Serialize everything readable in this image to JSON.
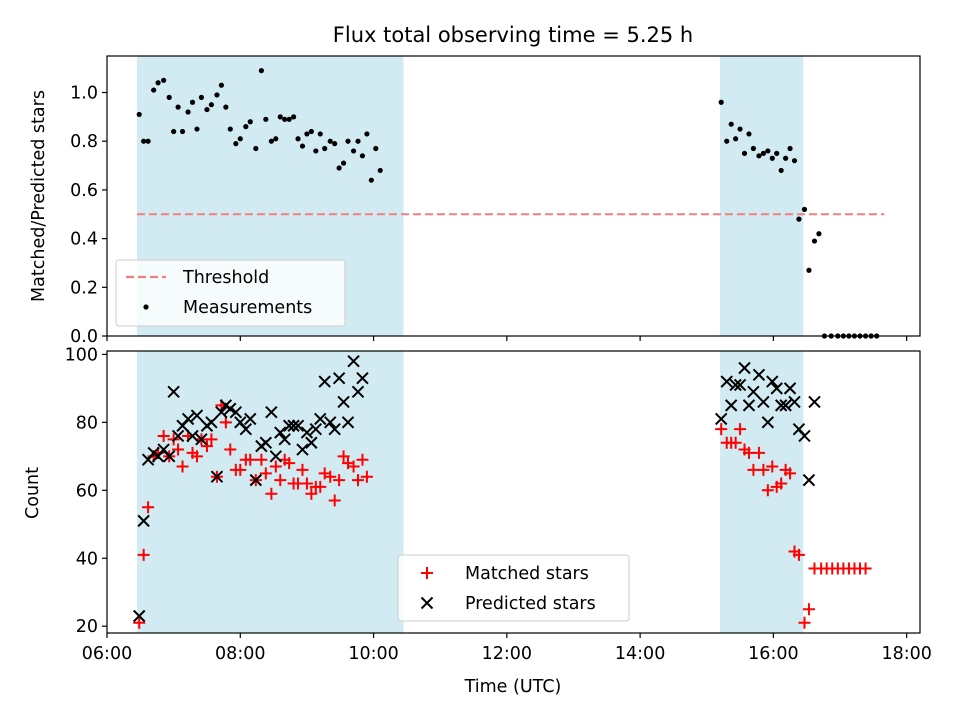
{
  "colors": {
    "shade": "#add8e6",
    "threshold": "#f08080",
    "matched": "#ff0000",
    "predicted": "#000000",
    "measurement": "#000000"
  },
  "chart_data": [
    {
      "type": "scatter",
      "title": "Flux total observing time = 5.25 h",
      "xlabel": "",
      "ylabel": "Matched/Predicted stars",
      "xlim": [
        "06:00",
        "18:12"
      ],
      "ylim": [
        0,
        1.15
      ],
      "yticks": [
        0.0,
        0.2,
        0.4,
        0.6,
        0.8,
        1.0
      ],
      "ytick_labels": [
        "0.0",
        "0.2",
        "0.4",
        "0.6",
        "0.8",
        "1.0"
      ],
      "xtick_labels_shown": false,
      "shaded_intervals": [
        [
          "06:27",
          "10:27"
        ],
        [
          "15:12",
          "16:27"
        ]
      ],
      "threshold": {
        "name": "Threshold",
        "value": 0.5,
        "x": [
          "06:27",
          "17:40"
        ]
      },
      "legend": {
        "placement": "lower-left",
        "entries": [
          "Threshold",
          "Measurements"
        ]
      },
      "series": [
        {
          "name": "Measurements",
          "points": [
            [
              "06:29",
              0.91
            ],
            [
              "06:33",
              0.8
            ],
            [
              "06:37",
              0.8
            ],
            [
              "06:42",
              1.01
            ],
            [
              "06:46",
              1.04
            ],
            [
              "06:51",
              1.05
            ],
            [
              "06:56",
              0.98
            ],
            [
              "07:00",
              0.84
            ],
            [
              "07:04",
              0.94
            ],
            [
              "07:08",
              0.84
            ],
            [
              "07:13",
              0.92
            ],
            [
              "07:17",
              0.96
            ],
            [
              "07:21",
              0.85
            ],
            [
              "07:25",
              0.98
            ],
            [
              "07:30",
              0.93
            ],
            [
              "07:34",
              0.95
            ],
            [
              "07:39",
              0.99
            ],
            [
              "07:43",
              1.03
            ],
            [
              "07:47",
              0.94
            ],
            [
              "07:51",
              0.85
            ],
            [
              "07:56",
              0.79
            ],
            [
              "08:00",
              0.81
            ],
            [
              "08:05",
              0.86
            ],
            [
              "08:09",
              0.88
            ],
            [
              "08:14",
              0.77
            ],
            [
              "08:19",
              1.09
            ],
            [
              "08:23",
              0.89
            ],
            [
              "08:28",
              0.8
            ],
            [
              "08:32",
              0.81
            ],
            [
              "08:36",
              0.9
            ],
            [
              "08:40",
              0.89
            ],
            [
              "08:44",
              0.89
            ],
            [
              "08:48",
              0.9
            ],
            [
              "08:52",
              0.81
            ],
            [
              "08:56",
              0.78
            ],
            [
              "09:00",
              0.83
            ],
            [
              "09:04",
              0.84
            ],
            [
              "09:08",
              0.76
            ],
            [
              "09:12",
              0.83
            ],
            [
              "09:16",
              0.77
            ],
            [
              "09:21",
              0.8
            ],
            [
              "09:25",
              0.79
            ],
            [
              "09:29",
              0.69
            ],
            [
              "09:33",
              0.71
            ],
            [
              "09:37",
              0.8
            ],
            [
              "09:42",
              0.76
            ],
            [
              "09:46",
              0.8
            ],
            [
              "09:50",
              0.74
            ],
            [
              "09:54",
              0.83
            ],
            [
              "09:58",
              0.64
            ],
            [
              "10:02",
              0.77
            ],
            [
              "10:06",
              0.68
            ],
            [
              "15:13",
              0.96
            ],
            [
              "15:18",
              0.8
            ],
            [
              "15:22",
              0.87
            ],
            [
              "15:26",
              0.81
            ],
            [
              "15:30",
              0.85
            ],
            [
              "15:34",
              0.75
            ],
            [
              "15:38",
              0.83
            ],
            [
              "15:42",
              0.77
            ],
            [
              "15:47",
              0.74
            ],
            [
              "15:51",
              0.75
            ],
            [
              "15:55",
              0.76
            ],
            [
              "15:59",
              0.73
            ],
            [
              "16:03",
              0.75
            ],
            [
              "16:07",
              0.68
            ],
            [
              "16:11",
              0.73
            ],
            [
              "16:15",
              0.77
            ],
            [
              "16:19",
              0.72
            ],
            [
              "16:23",
              0.48
            ],
            [
              "16:28",
              0.52
            ],
            [
              "16:32",
              0.27
            ],
            [
              "16:37",
              0.39
            ],
            [
              "16:41",
              0.42
            ],
            [
              "16:46",
              0.0
            ],
            [
              "16:52",
              0.0
            ],
            [
              "16:58",
              0.0
            ],
            [
              "17:03",
              0.0
            ],
            [
              "17:08",
              0.0
            ],
            [
              "17:13",
              0.0
            ],
            [
              "17:18",
              0.0
            ],
            [
              "17:23",
              0.0
            ],
            [
              "17:28",
              0.0
            ],
            [
              "17:33",
              0.0
            ]
          ]
        }
      ]
    },
    {
      "type": "scatter",
      "xlabel": "Time (UTC)",
      "ylabel": "Count",
      "xlim": [
        "06:00",
        "18:12"
      ],
      "ylim": [
        18,
        101
      ],
      "yticks": [
        20,
        40,
        60,
        80,
        100
      ],
      "ytick_labels": [
        "20",
        "40",
        "60",
        "80",
        "100"
      ],
      "xticks": [
        "06:00",
        "08:00",
        "10:00",
        "12:00",
        "14:00",
        "16:00",
        "18:00"
      ],
      "xtick_labels": [
        "06:00",
        "08:00",
        "10:00",
        "12:00",
        "14:00",
        "16:00",
        "18:00"
      ],
      "shaded_intervals": [
        [
          "06:27",
          "10:27"
        ],
        [
          "15:12",
          "16:27"
        ]
      ],
      "legend": {
        "placement": "lower-center",
        "entries": [
          "Matched stars",
          "Predicted stars"
        ]
      },
      "series": [
        {
          "name": "Matched stars",
          "marker": "+",
          "points": [
            [
              "06:29",
              21
            ],
            [
              "06:33",
              41
            ],
            [
              "06:37",
              55
            ],
            [
              "06:42",
              70
            ],
            [
              "06:46",
              71
            ],
            [
              "06:51",
              76
            ],
            [
              "06:56",
              70
            ],
            [
              "07:00",
              75
            ],
            [
              "07:04",
              72
            ],
            [
              "07:08",
              67
            ],
            [
              "07:13",
              76
            ],
            [
              "07:17",
              71
            ],
            [
              "07:21",
              70
            ],
            [
              "07:25",
              75
            ],
            [
              "07:30",
              73
            ],
            [
              "07:34",
              75
            ],
            [
              "07:39",
              64
            ],
            [
              "07:43",
              85
            ],
            [
              "07:47",
              80
            ],
            [
              "07:51",
              72
            ],
            [
              "07:56",
              66
            ],
            [
              "08:00",
              66
            ],
            [
              "08:05",
              69
            ],
            [
              "08:09",
              69
            ],
            [
              "08:14",
              63
            ],
            [
              "08:19",
              69
            ],
            [
              "08:23",
              65
            ],
            [
              "08:28",
              59
            ],
            [
              "08:32",
              67
            ],
            [
              "08:36",
              63
            ],
            [
              "08:40",
              69
            ],
            [
              "08:44",
              68
            ],
            [
              "08:48",
              62
            ],
            [
              "08:52",
              62
            ],
            [
              "08:56",
              66
            ],
            [
              "09:00",
              62
            ],
            [
              "09:04",
              59
            ],
            [
              "09:08",
              61
            ],
            [
              "09:12",
              61
            ],
            [
              "09:16",
              65
            ],
            [
              "09:21",
              64
            ],
            [
              "09:25",
              57
            ],
            [
              "09:29",
              63
            ],
            [
              "09:33",
              70
            ],
            [
              "09:37",
              68
            ],
            [
              "09:42",
              67
            ],
            [
              "09:46",
              63
            ],
            [
              "09:50",
              69
            ],
            [
              "09:54",
              64
            ],
            [
              "15:13",
              78
            ],
            [
              "15:18",
              74
            ],
            [
              "15:22",
              74
            ],
            [
              "15:26",
              74
            ],
            [
              "15:30",
              78
            ],
            [
              "15:34",
              72
            ],
            [
              "15:38",
              71
            ],
            [
              "15:42",
              66
            ],
            [
              "15:47",
              71
            ],
            [
              "15:51",
              66
            ],
            [
              "15:55",
              60
            ],
            [
              "15:59",
              67
            ],
            [
              "16:03",
              61
            ],
            [
              "16:07",
              62
            ],
            [
              "16:11",
              66
            ],
            [
              "16:15",
              65
            ],
            [
              "16:19",
              42
            ],
            [
              "16:23",
              41
            ],
            [
              "16:28",
              21
            ],
            [
              "16:32",
              25
            ],
            [
              "16:37",
              37
            ],
            [
              "16:43",
              37
            ],
            [
              "16:48",
              37
            ],
            [
              "16:53",
              37
            ],
            [
              "16:58",
              37
            ],
            [
              "17:03",
              37
            ],
            [
              "17:08",
              37
            ],
            [
              "17:13",
              37
            ],
            [
              "17:18",
              37
            ],
            [
              "17:23",
              37
            ]
          ]
        },
        {
          "name": "Predicted stars",
          "marker": "x",
          "points": [
            [
              "06:29",
              23
            ],
            [
              "06:33",
              51
            ],
            [
              "06:37",
              69
            ],
            [
              "06:42",
              71
            ],
            [
              "06:46",
              70
            ],
            [
              "06:51",
              72
            ],
            [
              "06:56",
              70
            ],
            [
              "07:00",
              89
            ],
            [
              "07:04",
              76
            ],
            [
              "07:08",
              79
            ],
            [
              "07:13",
              81
            ],
            [
              "07:17",
              76
            ],
            [
              "07:21",
              82
            ],
            [
              "07:25",
              75
            ],
            [
              "07:30",
              79
            ],
            [
              "07:34",
              80
            ],
            [
              "07:39",
              64
            ],
            [
              "07:43",
              83
            ],
            [
              "07:47",
              85
            ],
            [
              "07:51",
              84
            ],
            [
              "07:56",
              83
            ],
            [
              "08:00",
              80
            ],
            [
              "08:05",
              78
            ],
            [
              "08:09",
              81
            ],
            [
              "08:14",
              63
            ],
            [
              "08:19",
              73
            ],
            [
              "08:23",
              74
            ],
            [
              "08:28",
              83
            ],
            [
              "08:32",
              70
            ],
            [
              "08:36",
              77
            ],
            [
              "08:40",
              75
            ],
            [
              "08:44",
              79
            ],
            [
              "08:48",
              79
            ],
            [
              "08:52",
              79
            ],
            [
              "08:56",
              72
            ],
            [
              "09:00",
              77
            ],
            [
              "09:04",
              74
            ],
            [
              "09:08",
              78
            ],
            [
              "09:12",
              81
            ],
            [
              "09:16",
              92
            ],
            [
              "09:21",
              80
            ],
            [
              "09:25",
              78
            ],
            [
              "09:29",
              93
            ],
            [
              "09:33",
              86
            ],
            [
              "09:37",
              80
            ],
            [
              "09:42",
              98
            ],
            [
              "09:46",
              89
            ],
            [
              "09:50",
              93
            ],
            [
              "15:13",
              81
            ],
            [
              "15:18",
              92
            ],
            [
              "15:22",
              85
            ],
            [
              "15:26",
              91
            ],
            [
              "15:30",
              91
            ],
            [
              "15:34",
              96
            ],
            [
              "15:38",
              85
            ],
            [
              "15:42",
              89
            ],
            [
              "15:47",
              94
            ],
            [
              "15:51",
              86
            ],
            [
              "15:55",
              80
            ],
            [
              "15:59",
              92
            ],
            [
              "16:03",
              90
            ],
            [
              "16:07",
              85
            ],
            [
              "16:11",
              85
            ],
            [
              "16:15",
              90
            ],
            [
              "16:19",
              86
            ],
            [
              "16:23",
              78
            ],
            [
              "16:28",
              76
            ],
            [
              "16:32",
              63
            ],
            [
              "16:37",
              86
            ]
          ]
        }
      ]
    }
  ]
}
